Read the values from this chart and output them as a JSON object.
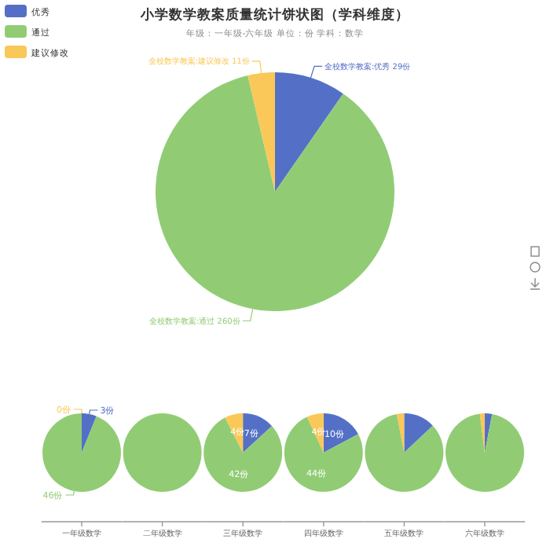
{
  "chart_data": [
    {
      "type": "pie",
      "title": "小学数学教案质量统计饼状图（学科维度）",
      "subtitle": "年级：一年级-六年级    单位：份    学科：数学",
      "legend": "top left",
      "categories": [
        "优秀",
        "通过",
        "建议修改"
      ],
      "values": [
        29,
        260,
        11
      ],
      "colors": [
        "#5470c6",
        "#91cc75",
        "#fac858"
      ],
      "value_labels": [
        "全校数学教案:优秀 29份",
        "全校数学教案:通过 260份",
        "全校数学教案:建议修改 11份"
      ]
    },
    {
      "type": "pie",
      "xlabel": "一年级数学",
      "values": [
        3,
        46,
        0
      ],
      "colors": [
        "#5470c6",
        "#91cc75",
        "#fac858"
      ],
      "value_labels": [
        "3份",
        "46份",
        "0份"
      ]
    },
    {
      "type": "pie",
      "xlabel": "二年级数学",
      "values": [
        100
      ],
      "colors": [
        "#91cc75"
      ]
    },
    {
      "type": "pie",
      "xlabel": "三年级数学",
      "values": [
        7,
        42,
        4
      ],
      "colors": [
        "#5470c6",
        "#91cc75",
        "#fac858"
      ],
      "value_labels": [
        "7份",
        "42份",
        "4份"
      ]
    },
    {
      "type": "pie",
      "xlabel": "四年级数学",
      "values": [
        10,
        44,
        4
      ],
      "colors": [
        "#5470c6",
        "#91cc75",
        "#fac858"
      ],
      "value_labels": [
        "10份",
        "44份",
        "4份"
      ]
    },
    {
      "type": "pie",
      "xlabel": "五年级数学",
      "values": [
        13,
        84,
        3
      ],
      "colors": [
        "#5470c6",
        "#91cc75",
        "#fac858"
      ]
    },
    {
      "type": "pie",
      "xlabel": "六年级数学",
      "values": [
        3,
        95,
        2
      ],
      "colors": [
        "#5470c6",
        "#91cc75",
        "#fac858"
      ]
    }
  ]
}
